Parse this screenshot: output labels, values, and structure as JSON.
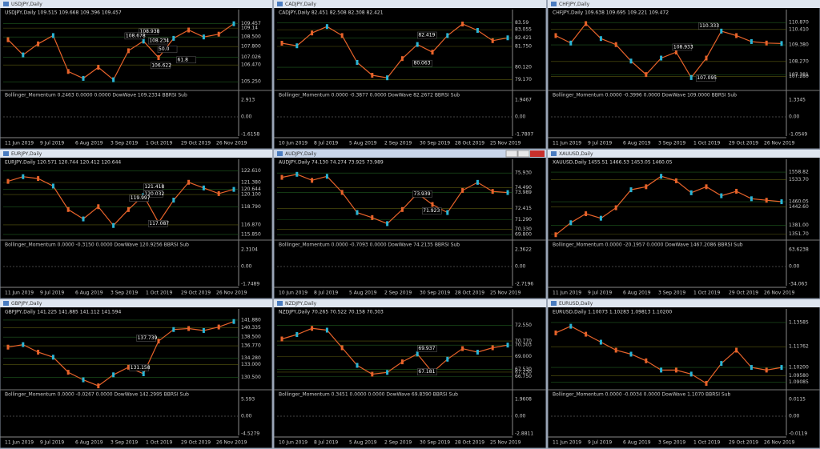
{
  "windows": [
    {
      "title": "USDJPY,Daily",
      "info": "USDJPY,Daily 109.515 109.668 109.396 109.457",
      "ylim": [
        104.8,
        109.9
      ],
      "price_ticks": [
        109.457,
        109.14,
        {
          "value": 108.5,
          "label": "108.500"
        },
        {
          "value": 107.8,
          "label": "107.800"
        },
        107.026,
        {
          "value": 106.47,
          "label": "106.470"
        },
        {
          "value": 105.25,
          "label": "105.250"
        }
      ],
      "closes": [
        108.3,
        107.2,
        108.0,
        108.6,
        106.0,
        105.5,
        106.3,
        105.4,
        107.5,
        108.2,
        107.0,
        108.4,
        109.0,
        108.5,
        108.7,
        109.457
      ],
      "annotations": [
        "108.938",
        "108.678",
        "108.234",
        "50.0",
        "61.8",
        "106.622"
      ],
      "indicator": "Bollinger_Momentum 0.2463 0.0000 0.0000 DowWave 109.2334 BBRSI Sub",
      "indicator_ticks": [
        "2.913",
        "0.00",
        "-1.6158"
      ],
      "dates": [
        "11 Jun 2019",
        "9 Jul 2019",
        "6 Aug 2019",
        "3 Sep 2019",
        "1 Oct 2019",
        "29 Oct 2019",
        "26 Nov 2019"
      ]
    },
    {
      "title": "CADJPY,Daily",
      "info": "CADJPY,Daily 82.451 82.508 82.308 82.421",
      "ylim": [
        78.5,
        84.0
      ],
      "price_ticks": [
        83.59,
        83.055,
        82.421,
        {
          "value": 81.75,
          "label": "81.750"
        },
        {
          "value": 80.12,
          "label": "80.120"
        },
        {
          "value": 79.17,
          "label": "79.170"
        }
      ],
      "closes": [
        82.0,
        81.8,
        82.8,
        83.3,
        82.6,
        80.5,
        79.5,
        79.3,
        80.8,
        81.9,
        81.3,
        82.6,
        83.5,
        83.0,
        82.2,
        82.421
      ],
      "annotations": [
        "82.419",
        "80.063"
      ],
      "indicator": "Bollinger_Momentum 0.0000 -0.3877 0.0000 DowWave 82.2672 BBRSI Sub",
      "indicator_ticks": [
        "1.9467",
        "0.00",
        "-1.7807"
      ],
      "dates": [
        "10 Jun 2019",
        "8 Jul 2019",
        "5 Aug 2019",
        "2 Sep 2019",
        "30 Sep 2019",
        "28 Oct 2019",
        "25 Nov 2019"
      ]
    },
    {
      "title": "CHFJPY,Daily",
      "info": "CHFJPY,Daily 109.638 109.695 109.221 109.472",
      "ylim": [
        106.5,
        111.2
      ],
      "price_ticks": [
        {
          "value": 110.87,
          "label": "110.870"
        },
        {
          "value": 110.41,
          "label": "110.410"
        },
        {
          "value": 109.38,
          "label": "109.380"
        },
        {
          "value": 108.27,
          "label": "108.270"
        },
        107.381,
        {
          "value": 107.28,
          "label": "107.280"
        }
      ],
      "closes": [
        110.0,
        109.5,
        110.8,
        109.8,
        109.4,
        108.3,
        107.4,
        108.5,
        108.9,
        107.2,
        108.5,
        110.3,
        110.0,
        109.6,
        109.5,
        109.472
      ],
      "annotations": [
        "110.333",
        "108.933",
        "107.095"
      ],
      "indicator": "Bollinger_Momentum 0.0000 -0.3996 0.0000 DowWave 109.0000 BBRSI Sub",
      "indicator_ticks": [
        "1.3345",
        "0.00",
        "-1.0549"
      ],
      "dates": [
        "11 Jun 2019",
        "9 Jul 2019",
        "6 Aug 2019",
        "3 Sep 2019",
        "1 Oct 2019",
        "29 Oct 2019",
        "26 Nov 2019"
      ]
    },
    {
      "title": "EURJPY,Daily",
      "info": "EURJPY,Daily 120.571 120.744 120.412 120.644",
      "ylim": [
        115.5,
        123.0
      ],
      "price_ticks": [
        {
          "value": 122.61,
          "label": "122.610"
        },
        {
          "value": 121.38,
          "label": "121.380"
        },
        120.644,
        {
          "value": 120.1,
          "label": "120.100"
        },
        {
          "value": 118.79,
          "label": "118.790"
        },
        {
          "value": 116.87,
          "label": "116.870"
        },
        {
          "value": 115.85,
          "label": "115.850"
        }
      ],
      "closes": [
        121.5,
        122.0,
        121.8,
        121.0,
        118.5,
        117.5,
        118.8,
        116.8,
        118.5,
        120.0,
        117.1,
        119.5,
        121.4,
        120.8,
        120.2,
        120.644
      ],
      "annotations": [
        "121.418",
        "120.032",
        "119.997",
        "117.087"
      ],
      "indicator": "Bollinger_Momentum 0.0000 -0.3150 0.0000 DowWave 120.9256 BBRSI Sub",
      "indicator_ticks": [
        "2.3104",
        "0.00",
        "-1.7489"
      ],
      "dates": [
        "11 Jun 2019",
        "9 Jul 2019",
        "6 Aug 2019",
        "3 Sep 2019",
        "1 Oct 2019",
        "29 Oct 2019",
        "26 Nov 2019"
      ]
    },
    {
      "title": "AUDJPY,Daily",
      "info": "AUDJPY,Daily 74.130 74.274 73.925 73.989",
      "ylim": [
        69.5,
        76.5
      ],
      "price_ticks": [
        {
          "value": 75.93,
          "label": "75.930"
        },
        {
          "value": 74.49,
          "label": "74.490"
        },
        73.989,
        72.415,
        {
          "value": 71.29,
          "label": "71.290"
        },
        {
          "value": 70.33,
          "label": "70.330"
        },
        {
          "value": 69.8,
          "label": "69.800"
        }
      ],
      "closes": [
        75.5,
        75.8,
        75.2,
        75.6,
        74.0,
        72.0,
        71.5,
        70.9,
        72.3,
        73.9,
        72.8,
        72.0,
        74.2,
        75.0,
        74.1,
        73.989
      ],
      "annotations": [
        "73.939",
        "71.923"
      ],
      "indicator": "Bollinger_Momentum 0.0000 -0.7093 0.0000 DowWave 74.2135 BBRSI Sub",
      "indicator_ticks": [
        "2.3622",
        "0.00",
        "-2.7196"
      ],
      "dates": [
        "10 Jun 2019",
        "8 Jul 2019",
        "5 Aug 2019",
        "2 Sep 2019",
        "30 Sep 2019",
        "28 Oct 2019",
        "25 Nov 2019"
      ]
    },
    {
      "title": "XAUUSD,Daily",
      "info": "XAUUSD,Daily 1455.51 1466.53 1453.05 1460.05",
      "ylim": [
        1340,
        1575
      ],
      "price_ticks": [
        1558.82,
        {
          "value": 1533.7,
          "label": "1533.70"
        },
        1460.05,
        {
          "value": 1442.6,
          "label": "1442.60"
        },
        {
          "value": 1381,
          "label": "1381.00"
        },
        {
          "value": 1351.7,
          "label": "1351.70"
        }
      ],
      "closes": [
        1350,
        1390,
        1420,
        1405,
        1440,
        1500,
        1510,
        1545,
        1530,
        1490,
        1510,
        1480,
        1495,
        1470,
        1465,
        1460.05
      ],
      "annotations": [],
      "indicator": "Bollinger_Momentum 0.0000 -20.1957 0.0000 DowWave 1467.2086 BBRSI Sub",
      "indicator_ticks": [
        "63.6238",
        "0.00",
        "-34.063"
      ],
      "dates": [
        "11 Jun 2019",
        "9 Jul 2019",
        "6 Aug 2019",
        "3 Sep 2019",
        "1 Oct 2019",
        "29 Oct 2019",
        "26 Nov 2019"
      ]
    },
    {
      "title": "GBPJPY,Daily",
      "info": "GBPJPY,Daily 141.225 141.885 141.112 141.594",
      "ylim": [
        128.5,
        142.5
      ],
      "price_ticks": [
        {
          "value": 141.88,
          "label": "141.880"
        },
        140.335,
        {
          "value": 138.5,
          "label": "138.500"
        },
        {
          "value": 136.77,
          "label": "136.770"
        },
        {
          "value": 134.28,
          "label": "134.280"
        },
        {
          "value": 133,
          "label": "133.000"
        },
        {
          "value": 130.5,
          "label": "130.500"
        }
      ],
      "closes": [
        136.5,
        137.0,
        135.5,
        134.5,
        131.5,
        130.0,
        128.8,
        131.0,
        132.5,
        131.2,
        137.7,
        140.0,
        140.2,
        139.8,
        140.5,
        141.594
      ],
      "annotations": [
        "137.739",
        "131.158"
      ],
      "indicator": "Bollinger_Momentum 0.0000 -0.0267 0.0000 DowWave 142.2995 BBRSI Sub",
      "indicator_ticks": [
        "5.593",
        "0.00",
        "-4.5279"
      ],
      "dates": [
        "11 Jun 2019",
        "9 Jul 2019",
        "6 Aug 2019",
        "3 Sep 2019",
        "1 Oct 2019",
        "29 Oct 2019",
        "26 Nov 2019"
      ]
    },
    {
      "title": "NZDJPY,Daily",
      "info": "NZDJPY,Daily 70.265 70.522 70.158 70.303",
      "ylim": [
        65.5,
        73.5
      ],
      "price_ticks": [
        {
          "value": 72.55,
          "label": "72.550"
        },
        {
          "value": 70.77,
          "label": "70.770"
        },
        70.303,
        {
          "value": 69,
          "label": "69.000"
        },
        {
          "value": 67.53,
          "label": "67.530"
        },
        {
          "value": 67.23,
          "label": "67.230"
        },
        {
          "value": 66.75,
          "label": "66.750"
        }
      ],
      "closes": [
        71.0,
        71.5,
        72.2,
        72.0,
        70.0,
        68.0,
        67.0,
        67.2,
        68.4,
        69.3,
        67.2,
        68.7,
        69.9,
        69.5,
        70.0,
        70.303
      ],
      "annotations": [
        "69.937",
        "67.181"
      ],
      "indicator": "Bollinger_Momentum 0.3451 0.0000 0.0000 DowWave 69.8390 BBRSI Sub",
      "indicator_ticks": [
        "1.9608",
        "0.00",
        "-2.8811"
      ],
      "dates": [
        "10 Jun 2019",
        "8 Jul 2019",
        "5 Aug 2019",
        "2 Sep 2019",
        "30 Sep 2019",
        "28 Oct 2019",
        "25 Nov 2019"
      ]
    },
    {
      "title": "EURUSD,Daily",
      "info": "EURUSD,Daily 1.10073 1.10283 1.09813 1.10200",
      "ylim": [
        1.087,
        1.14
      ],
      "price_ticks": [
        1.13585,
        1.11762,
        {
          "value": 1.102,
          "label": "1.10200"
        },
        {
          "value": 1.0958,
          "label": "1.09580"
        },
        1.09085
      ],
      "closes": [
        1.128,
        1.133,
        1.127,
        1.121,
        1.115,
        1.112,
        1.107,
        1.1,
        1.1,
        1.097,
        1.09,
        1.105,
        1.115,
        1.102,
        1.1,
        1.102
      ],
      "annotations": [],
      "indicator": "Bollinger_Momentum 0.0000 -0.0034 0.0000 DowWave 1.1070 BBRSI Sub",
      "indicator_ticks": [
        "0.0115",
        "0.00",
        "-0.0119"
      ],
      "dates": [
        "11 Jun 2019",
        "9 Jul 2019",
        "6 Aug 2019",
        "3 Sep 2019",
        "1 Oct 2019",
        "29 Oct 2019",
        "26 Nov 2019"
      ]
    }
  ]
}
